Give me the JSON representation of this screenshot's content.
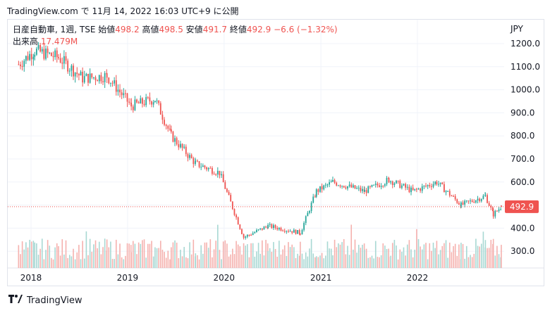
{
  "header": {
    "caption": "TradingView.com で 11月 14, 2022 16:03 UTC+9 に公開"
  },
  "legend": {
    "symbol": "日産自動車, 1週, TSE",
    "open_label": "始値",
    "open_value": "498.2",
    "high_label": "高値",
    "high_value": "498.5",
    "low_label": "安値",
    "low_value": "491.7",
    "close_label": "終値",
    "close_value": "492.9",
    "change": "−6.6 (−1.32%)",
    "volume_label": "出来高",
    "volume_value": "17.479M"
  },
  "currency": "JPY",
  "last_price_label": "492.9",
  "footer": {
    "brand": "TradingView",
    "logo_icon": "tradingview-logo-icon"
  },
  "colors": {
    "up": "#26a69a",
    "down": "#ef5350",
    "vol_up": "#a8d8d3",
    "vol_down": "#f5b1ae",
    "grid": "#f0f3fa"
  },
  "chart_data": {
    "type": "candlestick",
    "ylim": [
      200,
      1250
    ],
    "y_ticks": [
      "1200.0",
      "1100.0",
      "1000.0",
      "900.0",
      "800.0",
      "700.0",
      "600.0",
      "500.0",
      "400.0",
      "300.0"
    ],
    "x_ticks": [
      "2018",
      "2019",
      "2020",
      "2021",
      "2022"
    ],
    "last_close": 492.9,
    "approx_weekly_closes": [
      {
        "date": "2017-11",
        "close": 1110
      },
      {
        "date": "2018-01",
        "close": 1170
      },
      {
        "date": "2018-04",
        "close": 1140
      },
      {
        "date": "2018-07",
        "close": 1050
      },
      {
        "date": "2018-10",
        "close": 1060
      },
      {
        "date": "2019-01",
        "close": 930
      },
      {
        "date": "2019-04",
        "close": 960
      },
      {
        "date": "2019-06",
        "close": 800
      },
      {
        "date": "2019-09",
        "close": 680
      },
      {
        "date": "2019-12",
        "close": 640
      },
      {
        "date": "2020-03",
        "close": 360
      },
      {
        "date": "2020-06",
        "close": 410
      },
      {
        "date": "2020-10",
        "close": 380
      },
      {
        "date": "2020-12",
        "close": 560
      },
      {
        "date": "2021-02",
        "close": 600
      },
      {
        "date": "2021-06",
        "close": 560
      },
      {
        "date": "2021-09",
        "close": 610
      },
      {
        "date": "2021-12",
        "close": 560
      },
      {
        "date": "2022-03",
        "close": 600
      },
      {
        "date": "2022-06",
        "close": 500
      },
      {
        "date": "2022-09",
        "close": 540
      },
      {
        "date": "2022-10",
        "close": 460
      },
      {
        "date": "2022-11",
        "close": 492.9
      }
    ]
  }
}
